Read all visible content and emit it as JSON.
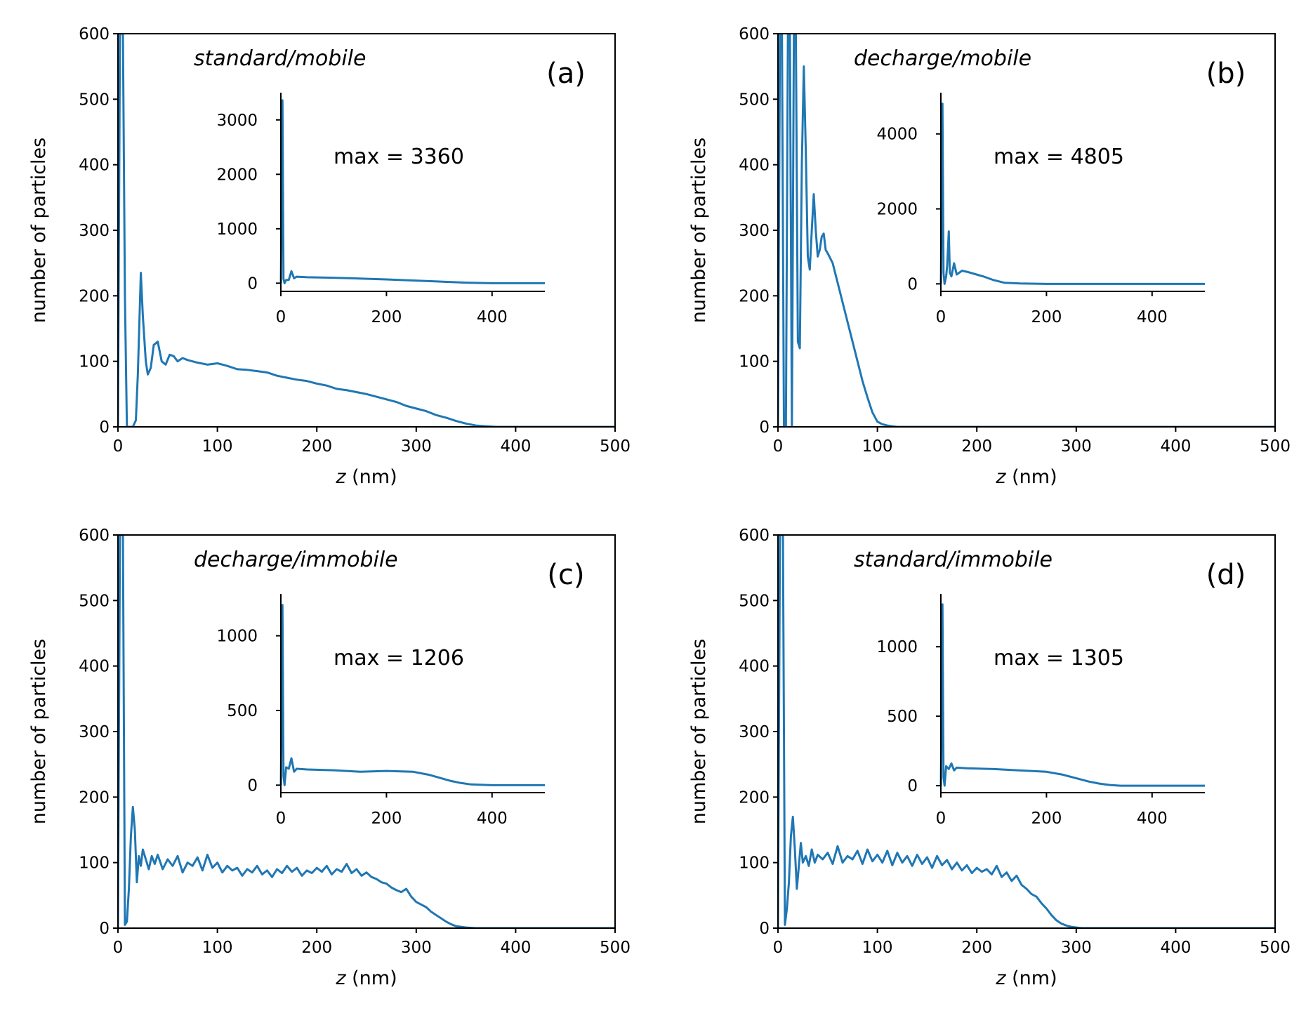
{
  "figure": {
    "line_color": "#1f77b4",
    "axis_color": "#000000"
  },
  "chart_data": [
    {
      "id": "a",
      "type": "line",
      "title": "standard/mobile",
      "panel_label": "(a)",
      "xlabel_var": "z",
      "xlabel_unit": " (nm)",
      "ylabel": "number of particles",
      "xlim": [
        0,
        500
      ],
      "ylim": [
        0,
        600
      ],
      "xticks": [
        0,
        100,
        200,
        300,
        400,
        500
      ],
      "yticks": [
        0,
        100,
        200,
        300,
        400,
        500,
        600
      ],
      "series": [
        {
          "name": "main",
          "x": [
            0,
            2,
            4,
            5,
            7,
            9,
            12,
            15,
            18,
            20,
            23,
            25,
            28,
            30,
            33,
            36,
            40,
            44,
            48,
            52,
            56,
            60,
            65,
            70,
            80,
            90,
            100,
            110,
            120,
            130,
            140,
            150,
            160,
            170,
            180,
            190,
            200,
            210,
            220,
            230,
            240,
            250,
            260,
            270,
            280,
            290,
            300,
            310,
            320,
            330,
            340,
            350,
            360,
            370,
            380,
            400,
            450,
            500
          ],
          "y": [
            0,
            600,
            600,
            600,
            200,
            0,
            0,
            0,
            10,
            80,
            235,
            170,
            100,
            80,
            90,
            125,
            130,
            100,
            95,
            110,
            108,
            100,
            105,
            102,
            98,
            95,
            97,
            93,
            88,
            87,
            85,
            83,
            78,
            75,
            72,
            70,
            66,
            63,
            58,
            56,
            53,
            50,
            46,
            42,
            38,
            32,
            28,
            24,
            18,
            14,
            9,
            5,
            2,
            1,
            0,
            0,
            0,
            0
          ]
        }
      ],
      "inset": {
        "xlim": [
          0,
          500
        ],
        "ylim": [
          -150,
          3500
        ],
        "xticks": [
          0,
          200,
          400
        ],
        "yticks": [
          0,
          1000,
          2000,
          3000
        ],
        "annotation": "max = 3360",
        "x": [
          0,
          3,
          5,
          7,
          10,
          15,
          20,
          25,
          30,
          50,
          100,
          200,
          300,
          350,
          400,
          450,
          500
        ],
        "y": [
          0,
          3360,
          80,
          0,
          60,
          60,
          220,
          90,
          120,
          110,
          100,
          70,
          30,
          10,
          0,
          0,
          0
        ]
      }
    },
    {
      "id": "b",
      "type": "line",
      "title": "decharge/mobile",
      "panel_label": "(b)",
      "xlabel_var": "z",
      "xlabel_unit": " (nm)",
      "ylabel": "number of particles",
      "xlim": [
        0,
        500
      ],
      "ylim": [
        0,
        600
      ],
      "xticks": [
        0,
        100,
        200,
        300,
        400,
        500
      ],
      "yticks": [
        0,
        100,
        200,
        300,
        400,
        500,
        600
      ],
      "series": [
        {
          "name": "main",
          "x": [
            0,
            2,
            4,
            6,
            8,
            10,
            12,
            14,
            16,
            18,
            20,
            22,
            24,
            26,
            28,
            30,
            32,
            34,
            36,
            38,
            40,
            42,
            44,
            46,
            48,
            50,
            55,
            60,
            65,
            70,
            75,
            80,
            85,
            90,
            95,
            100,
            105,
            110,
            115,
            120,
            125,
            130,
            140,
            200,
            300,
            400,
            500
          ],
          "y": [
            0,
            600,
            600,
            0,
            0,
            600,
            600,
            0,
            600,
            600,
            130,
            120,
            400,
            550,
            420,
            260,
            240,
            300,
            355,
            300,
            260,
            270,
            290,
            295,
            270,
            265,
            250,
            220,
            190,
            160,
            130,
            100,
            70,
            45,
            22,
            8,
            4,
            2,
            1,
            0,
            0,
            0,
            0,
            0,
            0,
            0,
            0
          ]
        }
      ],
      "inset": {
        "xlim": [
          0,
          500
        ],
        "ylim": [
          -200,
          5100
        ],
        "xticks": [
          0,
          200,
          400
        ],
        "yticks": [
          0,
          2000,
          4000
        ],
        "annotation": "max = 4805",
        "x": [
          0,
          3,
          5,
          7,
          10,
          12,
          15,
          17,
          20,
          25,
          30,
          40,
          50,
          60,
          80,
          100,
          120,
          150,
          200,
          300,
          400,
          500
        ],
        "y": [
          0,
          4805,
          300,
          0,
          200,
          500,
          1400,
          300,
          200,
          550,
          250,
          350,
          320,
          280,
          200,
          100,
          30,
          10,
          0,
          0,
          0,
          0
        ]
      }
    },
    {
      "id": "c",
      "type": "line",
      "title": "decharge/immobile",
      "panel_label": "(c)",
      "xlabel_var": "z",
      "xlabel_unit": " (nm)",
      "ylabel": "number of particles",
      "xlim": [
        0,
        500
      ],
      "ylim": [
        0,
        600
      ],
      "xticks": [
        0,
        100,
        200,
        300,
        400,
        500
      ],
      "yticks": [
        0,
        100,
        200,
        300,
        400,
        500,
        600
      ],
      "series": [
        {
          "name": "main",
          "x": [
            0,
            2,
            4,
            5,
            7,
            9,
            11,
            13,
            15,
            17,
            19,
            21,
            23,
            25,
            28,
            31,
            34,
            37,
            40,
            45,
            50,
            55,
            60,
            65,
            70,
            75,
            80,
            85,
            90,
            95,
            100,
            105,
            110,
            115,
            120,
            125,
            130,
            135,
            140,
            145,
            150,
            155,
            160,
            165,
            170,
            175,
            180,
            185,
            190,
            195,
            200,
            205,
            210,
            215,
            220,
            225,
            230,
            235,
            240,
            245,
            250,
            255,
            260,
            265,
            270,
            275,
            280,
            285,
            290,
            295,
            300,
            305,
            310,
            315,
            320,
            325,
            330,
            335,
            340,
            345,
            350,
            360,
            400,
            450,
            500
          ],
          "y": [
            0,
            600,
            600,
            600,
            5,
            10,
            60,
            140,
            185,
            150,
            70,
            110,
            95,
            120,
            105,
            90,
            110,
            98,
            112,
            90,
            105,
            95,
            110,
            85,
            100,
            95,
            108,
            88,
            112,
            92,
            100,
            85,
            95,
            88,
            92,
            80,
            90,
            85,
            95,
            82,
            88,
            78,
            90,
            84,
            95,
            86,
            92,
            80,
            88,
            84,
            92,
            86,
            95,
            82,
            90,
            86,
            98,
            84,
            90,
            80,
            85,
            78,
            75,
            70,
            68,
            62,
            58,
            55,
            60,
            48,
            40,
            36,
            32,
            25,
            20,
            15,
            10,
            6,
            3,
            2,
            1,
            0,
            0,
            0,
            0
          ]
        }
      ],
      "inset": {
        "xlim": [
          0,
          500
        ],
        "ylim": [
          -50,
          1280
        ],
        "xticks": [
          0,
          200,
          400
        ],
        "yticks": [
          0,
          500,
          1000
        ],
        "annotation": "max = 1206",
        "x": [
          0,
          3,
          5,
          7,
          10,
          15,
          20,
          25,
          30,
          50,
          100,
          150,
          200,
          250,
          280,
          300,
          320,
          340,
          360,
          400,
          450,
          500
        ],
        "y": [
          0,
          1206,
          60,
          0,
          120,
          110,
          180,
          90,
          110,
          105,
          100,
          90,
          95,
          90,
          70,
          50,
          30,
          15,
          5,
          0,
          0,
          0
        ]
      }
    },
    {
      "id": "d",
      "type": "line",
      "title": "standard/immobile",
      "panel_label": "(d)",
      "xlabel_var": "z",
      "xlabel_unit": " (nm)",
      "ylabel": "number of particles",
      "xlim": [
        0,
        500
      ],
      "ylim": [
        0,
        600
      ],
      "xticks": [
        0,
        100,
        200,
        300,
        400,
        500
      ],
      "yticks": [
        0,
        100,
        200,
        300,
        400,
        500,
        600
      ],
      "series": [
        {
          "name": "main",
          "x": [
            0,
            2,
            4,
            5,
            7,
            9,
            11,
            13,
            15,
            17,
            19,
            21,
            23,
            25,
            28,
            31,
            34,
            37,
            40,
            45,
            50,
            55,
            60,
            65,
            70,
            75,
            80,
            85,
            90,
            95,
            100,
            105,
            110,
            115,
            120,
            125,
            130,
            135,
            140,
            145,
            150,
            155,
            160,
            165,
            170,
            175,
            180,
            185,
            190,
            195,
            200,
            205,
            210,
            215,
            220,
            225,
            230,
            235,
            240,
            245,
            250,
            255,
            260,
            265,
            270,
            275,
            280,
            285,
            290,
            295,
            300,
            305,
            310,
            315,
            320,
            350,
            400,
            450,
            500
          ],
          "y": [
            0,
            600,
            600,
            600,
            5,
            30,
            70,
            140,
            170,
            120,
            60,
            95,
            130,
            100,
            110,
            95,
            120,
            100,
            112,
            105,
            115,
            98,
            125,
            100,
            110,
            105,
            118,
            98,
            120,
            102,
            112,
            100,
            118,
            96,
            115,
            100,
            110,
            95,
            112,
            98,
            108,
            92,
            110,
            96,
            104,
            90,
            100,
            88,
            96,
            84,
            92,
            86,
            90,
            82,
            95,
            78,
            85,
            72,
            80,
            66,
            60,
            52,
            48,
            38,
            30,
            20,
            12,
            7,
            4,
            2,
            1,
            0,
            0,
            0,
            0,
            0,
            0,
            0,
            0
          ]
        }
      ],
      "inset": {
        "xlim": [
          0,
          500
        ],
        "ylim": [
          -50,
          1380
        ],
        "xticks": [
          0,
          200,
          400
        ],
        "yticks": [
          0,
          500,
          1000
        ],
        "annotation": "max = 1305",
        "x": [
          0,
          3,
          5,
          7,
          10,
          15,
          20,
          25,
          30,
          50,
          100,
          150,
          200,
          230,
          260,
          280,
          300,
          320,
          340,
          400,
          450,
          500
        ],
        "y": [
          0,
          1305,
          60,
          0,
          140,
          120,
          160,
          110,
          130,
          125,
          120,
          110,
          100,
          80,
          50,
          30,
          15,
          5,
          0,
          0,
          0,
          0
        ]
      }
    }
  ]
}
